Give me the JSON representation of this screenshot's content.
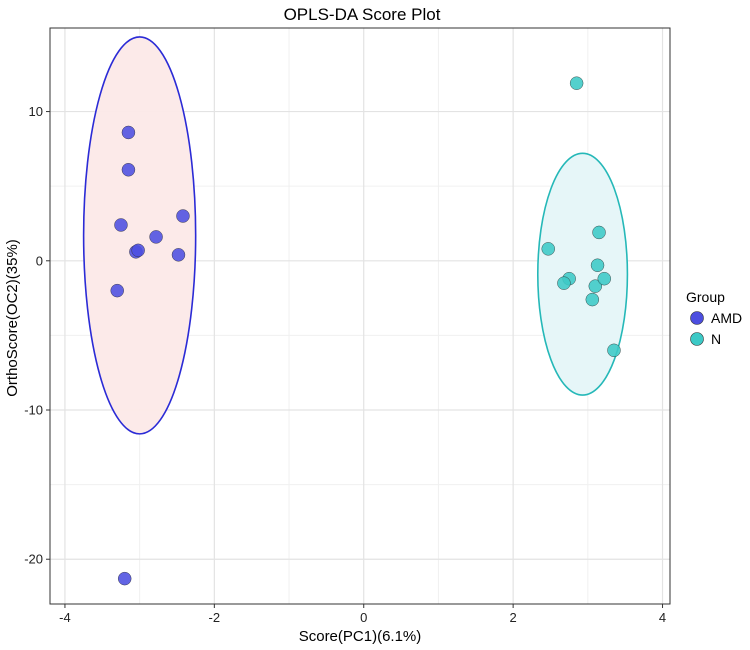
{
  "chart_data": {
    "type": "scatter",
    "title": "OPLS-DA Score Plot",
    "xlabel": "Score(PC1)(6.1%)",
    "ylabel": "OrthoScore(OC2)(35%)",
    "xlim": [
      -4.2,
      4.1
    ],
    "ylim": [
      -23,
      15.6
    ],
    "xticks": [
      -4,
      -2,
      0,
      2,
      4
    ],
    "yticks": [
      -20,
      -10,
      0,
      10
    ],
    "xtick_labels": [
      "-4",
      "-2",
      "0",
      "2",
      "4"
    ],
    "ytick_labels": [
      "-20",
      "-10",
      "0",
      "10"
    ],
    "grid": true,
    "legend": {
      "title": "Group",
      "position": "right"
    },
    "series": [
      {
        "name": "AMD",
        "color": "#4C4EE0",
        "ellipse": {
          "cx": -3.0,
          "cy": 1.7,
          "rx": 0.75,
          "ry": 13.3,
          "stroke": "#2B2BD6",
          "fill": "#FCE9E8"
        },
        "points": [
          {
            "x": -3.15,
            "y": 8.6
          },
          {
            "x": -3.15,
            "y": 6.1
          },
          {
            "x": -3.25,
            "y": 2.4
          },
          {
            "x": -3.05,
            "y": 0.6
          },
          {
            "x": -3.02,
            "y": 0.7
          },
          {
            "x": -2.78,
            "y": 1.6
          },
          {
            "x": -2.42,
            "y": 3.0
          },
          {
            "x": -2.48,
            "y": 0.4
          },
          {
            "x": -3.3,
            "y": -2.0
          },
          {
            "x": -3.2,
            "y": -21.3
          }
        ]
      },
      {
        "name": "N",
        "color": "#3CC9C6",
        "ellipse": {
          "cx": 2.93,
          "cy": -0.9,
          "rx": 0.6,
          "ry": 8.1,
          "stroke": "#25B8B8",
          "fill": "#E5F6F8"
        },
        "points": [
          {
            "x": 2.85,
            "y": 11.9
          },
          {
            "x": 2.47,
            "y": 0.8
          },
          {
            "x": 3.15,
            "y": 1.9
          },
          {
            "x": 3.13,
            "y": -0.3
          },
          {
            "x": 2.75,
            "y": -1.2
          },
          {
            "x": 2.68,
            "y": -1.5
          },
          {
            "x": 3.1,
            "y": -1.7
          },
          {
            "x": 3.22,
            "y": -1.2
          },
          {
            "x": 3.06,
            "y": -2.6
          },
          {
            "x": 3.35,
            "y": -6.0
          }
        ]
      }
    ]
  }
}
